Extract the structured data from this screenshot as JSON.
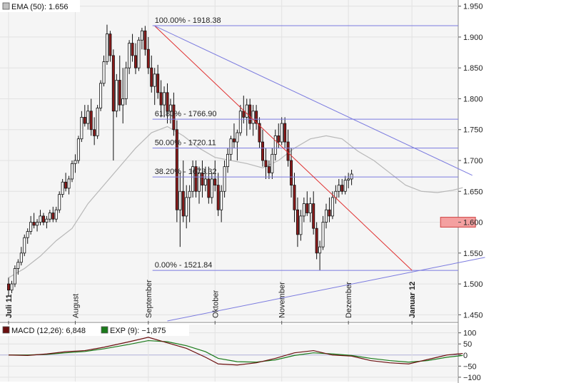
{
  "main_legend": {
    "swatch_color": "#c0c0c0",
    "label": "EMA (50): 1.656"
  },
  "macd_legend": [
    {
      "swatch_color": "#6b0f0f",
      "label": "MACD (12,26): 6,848"
    },
    {
      "swatch_color": "#1a7a1a",
      "label": "EXP (9): −1,875"
    }
  ],
  "colors": {
    "up_candle": "#ffffff",
    "down_candle": "#8b1a1a",
    "fib_line": "#7a7adf",
    "trend_red": "#e03030",
    "ema": "#b8b8b8",
    "macd": "#6b0f0f",
    "signal": "#1a7a1a",
    "target_box": "#f4a0a0"
  },
  "chart_data": [
    {
      "type": "candlestick",
      "y_ticks": [
        1450,
        1500,
        1550,
        1600,
        1650,
        1700,
        1750,
        1800,
        1850,
        1900,
        1950
      ],
      "y_tick_labels": [
        "1.450",
        "1.500",
        "1.550",
        "1.600",
        "1.650",
        "1.700",
        "1.750",
        "1.800",
        "1.850",
        "1.900",
        "1.950"
      ],
      "ylim": [
        1440,
        1960
      ],
      "x_labels": [
        {
          "label": "Juli 11",
          "bold": true,
          "day": 0
        },
        {
          "label": "August",
          "bold": false,
          "day": 21
        },
        {
          "label": "September",
          "bold": false,
          "day": 44
        },
        {
          "label": "Oktober",
          "bold": false,
          "day": 65
        },
        {
          "label": "November",
          "bold": false,
          "day": 86
        },
        {
          "label": "Dezember",
          "bold": false,
          "day": 107
        },
        {
          "label": "Januar 12",
          "bold": true,
          "day": 127
        }
      ],
      "fibonacci": [
        {
          "label": "100.00% - 1918.38",
          "value": 1918.38
        },
        {
          "label": "61.80% - 1766.90",
          "value": 1766.9
        },
        {
          "label": "50.00% - 1720.11",
          "value": 1720.11
        },
        {
          "label": "38.20% - 1673.32",
          "value": 1673.32
        },
        {
          "label": "0.00% - 1521.84",
          "value": 1521.84
        }
      ],
      "fib_start_day": 46,
      "trendlines": [
        {
          "color": "red",
          "from": [
            46,
            1918
          ],
          "to": [
            127,
            1522
          ]
        },
        {
          "color": "blue",
          "from": [
            46,
            1918
          ],
          "to": [
            146,
            1676
          ]
        },
        {
          "color": "blue",
          "from": [
            50,
            1440
          ],
          "to": [
            150,
            1543
          ]
        }
      ],
      "target_zone": {
        "day_from": 136,
        "day_to": 147,
        "low": 1592,
        "high": 1608
      },
      "ema_series": [
        [
          0,
          1510
        ],
        [
          5,
          1525
        ],
        [
          10,
          1545
        ],
        [
          15,
          1570
        ],
        [
          20,
          1590
        ],
        [
          25,
          1630
        ],
        [
          30,
          1660
        ],
        [
          35,
          1690
        ],
        [
          40,
          1720
        ],
        [
          45,
          1745
        ],
        [
          50,
          1755
        ],
        [
          55,
          1740
        ],
        [
          60,
          1720
        ],
        [
          65,
          1705
        ],
        [
          70,
          1700
        ],
        [
          75,
          1695
        ],
        [
          80,
          1688
        ],
        [
          85,
          1700
        ],
        [
          90,
          1720
        ],
        [
          95,
          1735
        ],
        [
          100,
          1740
        ],
        [
          105,
          1735
        ],
        [
          110,
          1715
        ],
        [
          115,
          1700
        ],
        [
          120,
          1680
        ],
        [
          125,
          1660
        ],
        [
          130,
          1650
        ],
        [
          135,
          1648
        ],
        [
          140,
          1652
        ],
        [
          143,
          1656
        ]
      ],
      "candles": [
        [
          1500,
          1510,
          1480,
          1490
        ],
        [
          1490,
          1505,
          1485,
          1500
        ],
        [
          1500,
          1530,
          1495,
          1525
        ],
        [
          1525,
          1540,
          1515,
          1535
        ],
        [
          1535,
          1560,
          1530,
          1550
        ],
        [
          1550,
          1580,
          1545,
          1575
        ],
        [
          1575,
          1590,
          1565,
          1585
        ],
        [
          1585,
          1610,
          1580,
          1600
        ],
        [
          1600,
          1615,
          1590,
          1595
        ],
        [
          1595,
          1605,
          1585,
          1600
        ],
        [
          1600,
          1620,
          1595,
          1610
        ],
        [
          1610,
          1615,
          1595,
          1600
        ],
        [
          1600,
          1610,
          1590,
          1605
        ],
        [
          1605,
          1620,
          1600,
          1615
        ],
        [
          1615,
          1625,
          1600,
          1605
        ],
        [
          1605,
          1625,
          1600,
          1620
        ],
        [
          1620,
          1650,
          1615,
          1645
        ],
        [
          1645,
          1670,
          1640,
          1665
        ],
        [
          1665,
          1680,
          1650,
          1655
        ],
        [
          1655,
          1675,
          1645,
          1670
        ],
        [
          1670,
          1700,
          1665,
          1695
        ],
        [
          1695,
          1710,
          1680,
          1700
        ],
        [
          1700,
          1740,
          1695,
          1735
        ],
        [
          1735,
          1780,
          1730,
          1770
        ],
        [
          1770,
          1790,
          1755,
          1760
        ],
        [
          1760,
          1790,
          1750,
          1780
        ],
        [
          1780,
          1800,
          1740,
          1750
        ],
        [
          1750,
          1770,
          1725,
          1740
        ],
        [
          1740,
          1790,
          1735,
          1785
        ],
        [
          1785,
          1830,
          1780,
          1825
        ],
        [
          1825,
          1870,
          1820,
          1860
        ],
        [
          1860,
          1920,
          1855,
          1905
        ],
        [
          1905,
          1910,
          1860,
          1870
        ],
        [
          1870,
          1880,
          1700,
          1780
        ],
        [
          1780,
          1840,
          1770,
          1830
        ],
        [
          1830,
          1870,
          1780,
          1790
        ],
        [
          1790,
          1850,
          1760,
          1800
        ],
        [
          1800,
          1860,
          1790,
          1850
        ],
        [
          1850,
          1895,
          1840,
          1890
        ],
        [
          1890,
          1905,
          1860,
          1870
        ],
        [
          1870,
          1890,
          1840,
          1850
        ],
        [
          1850,
          1900,
          1845,
          1895
        ],
        [
          1895,
          1915,
          1880,
          1910
        ],
        [
          1910,
          1918,
          1870,
          1880
        ],
        [
          1880,
          1900,
          1840,
          1850
        ],
        [
          1850,
          1870,
          1810,
          1820
        ],
        [
          1820,
          1850,
          1790,
          1840
        ],
        [
          1840,
          1855,
          1800,
          1810
        ],
        [
          1810,
          1830,
          1770,
          1790
        ],
        [
          1790,
          1820,
          1770,
          1810
        ],
        [
          1810,
          1825,
          1760,
          1780
        ],
        [
          1780,
          1800,
          1760,
          1790
        ],
        [
          1790,
          1810,
          1740,
          1750
        ],
        [
          1750,
          1765,
          1600,
          1620
        ],
        [
          1620,
          1680,
          1560,
          1650
        ],
        [
          1650,
          1700,
          1600,
          1610
        ],
        [
          1610,
          1660,
          1590,
          1640
        ],
        [
          1640,
          1660,
          1600,
          1650
        ],
        [
          1650,
          1700,
          1640,
          1690
        ],
        [
          1690,
          1700,
          1640,
          1650
        ],
        [
          1650,
          1690,
          1630,
          1680
        ],
        [
          1680,
          1700,
          1640,
          1660
        ],
        [
          1660,
          1690,
          1650,
          1670
        ],
        [
          1670,
          1690,
          1630,
          1640
        ],
        [
          1640,
          1680,
          1630,
          1670
        ],
        [
          1670,
          1700,
          1650,
          1660
        ],
        [
          1660,
          1680,
          1610,
          1620
        ],
        [
          1620,
          1660,
          1600,
          1650
        ],
        [
          1650,
          1700,
          1640,
          1690
        ],
        [
          1690,
          1720,
          1680,
          1710
        ],
        [
          1710,
          1740,
          1700,
          1735
        ],
        [
          1735,
          1760,
          1720,
          1730
        ],
        [
          1730,
          1750,
          1700,
          1745
        ],
        [
          1745,
          1790,
          1740,
          1780
        ],
        [
          1780,
          1805,
          1760,
          1770
        ],
        [
          1770,
          1800,
          1740,
          1790
        ],
        [
          1790,
          1800,
          1750,
          1760
        ],
        [
          1760,
          1790,
          1740,
          1780
        ],
        [
          1780,
          1790,
          1750,
          1760
        ],
        [
          1760,
          1770,
          1720,
          1730
        ],
        [
          1730,
          1750,
          1690,
          1700
        ],
        [
          1700,
          1720,
          1670,
          1690
        ],
        [
          1690,
          1700,
          1670,
          1680
        ],
        [
          1680,
          1720,
          1670,
          1710
        ],
        [
          1710,
          1750,
          1700,
          1740
        ],
        [
          1740,
          1760,
          1720,
          1730
        ],
        [
          1730,
          1770,
          1725,
          1760
        ],
        [
          1760,
          1770,
          1720,
          1730
        ],
        [
          1730,
          1750,
          1690,
          1700
        ],
        [
          1700,
          1720,
          1640,
          1660
        ],
        [
          1660,
          1680,
          1600,
          1620
        ],
        [
          1620,
          1640,
          1560,
          1580
        ],
        [
          1580,
          1620,
          1570,
          1610
        ],
        [
          1610,
          1640,
          1600,
          1630
        ],
        [
          1630,
          1650,
          1610,
          1615
        ],
        [
          1615,
          1640,
          1600,
          1630
        ],
        [
          1630,
          1650,
          1580,
          1590
        ],
        [
          1590,
          1600,
          1540,
          1550
        ],
        [
          1550,
          1570,
          1522,
          1560
        ],
        [
          1560,
          1610,
          1555,
          1600
        ],
        [
          1600,
          1630,
          1590,
          1620
        ],
        [
          1620,
          1640,
          1600,
          1610
        ],
        [
          1610,
          1650,
          1605,
          1640
        ],
        [
          1640,
          1660,
          1630,
          1650
        ],
        [
          1650,
          1670,
          1640,
          1660
        ],
        [
          1660,
          1670,
          1645,
          1650
        ],
        [
          1650,
          1675,
          1645,
          1668
        ],
        [
          1668,
          1680,
          1655,
          1670
        ],
        [
          1670,
          1685,
          1660,
          1678
        ]
      ],
      "macd_panel": {
        "y_ticks": [
          100,
          50,
          0,
          -50,
          -100
        ],
        "y_tick_labels": [
          "100",
          "50",
          "0",
          "−50",
          "−100"
        ],
        "ylim": [
          -110,
          115
        ],
        "macd": [
          [
            0,
            0
          ],
          [
            6,
            -2
          ],
          [
            12,
            5
          ],
          [
            18,
            15
          ],
          [
            24,
            20
          ],
          [
            30,
            35
          ],
          [
            38,
            60
          ],
          [
            44,
            80
          ],
          [
            50,
            55
          ],
          [
            56,
            30
          ],
          [
            62,
            -10
          ],
          [
            66,
            -40
          ],
          [
            72,
            -45
          ],
          [
            78,
            -35
          ],
          [
            84,
            -15
          ],
          [
            90,
            10
          ],
          [
            96,
            20
          ],
          [
            102,
            0
          ],
          [
            108,
            -5
          ],
          [
            114,
            -25
          ],
          [
            120,
            -35
          ],
          [
            126,
            -40
          ],
          [
            132,
            -20
          ],
          [
            138,
            0
          ],
          [
            143,
            7
          ]
        ],
        "signal": [
          [
            0,
            0
          ],
          [
            6,
            0
          ],
          [
            12,
            3
          ],
          [
            18,
            10
          ],
          [
            24,
            16
          ],
          [
            30,
            28
          ],
          [
            38,
            48
          ],
          [
            44,
            65
          ],
          [
            50,
            60
          ],
          [
            56,
            42
          ],
          [
            62,
            15
          ],
          [
            66,
            -15
          ],
          [
            72,
            -30
          ],
          [
            78,
            -32
          ],
          [
            84,
            -22
          ],
          [
            90,
            -2
          ],
          [
            96,
            10
          ],
          [
            102,
            5
          ],
          [
            108,
            -2
          ],
          [
            114,
            -15
          ],
          [
            120,
            -25
          ],
          [
            126,
            -32
          ],
          [
            132,
            -25
          ],
          [
            138,
            -10
          ],
          [
            143,
            -2
          ]
        ]
      }
    }
  ]
}
